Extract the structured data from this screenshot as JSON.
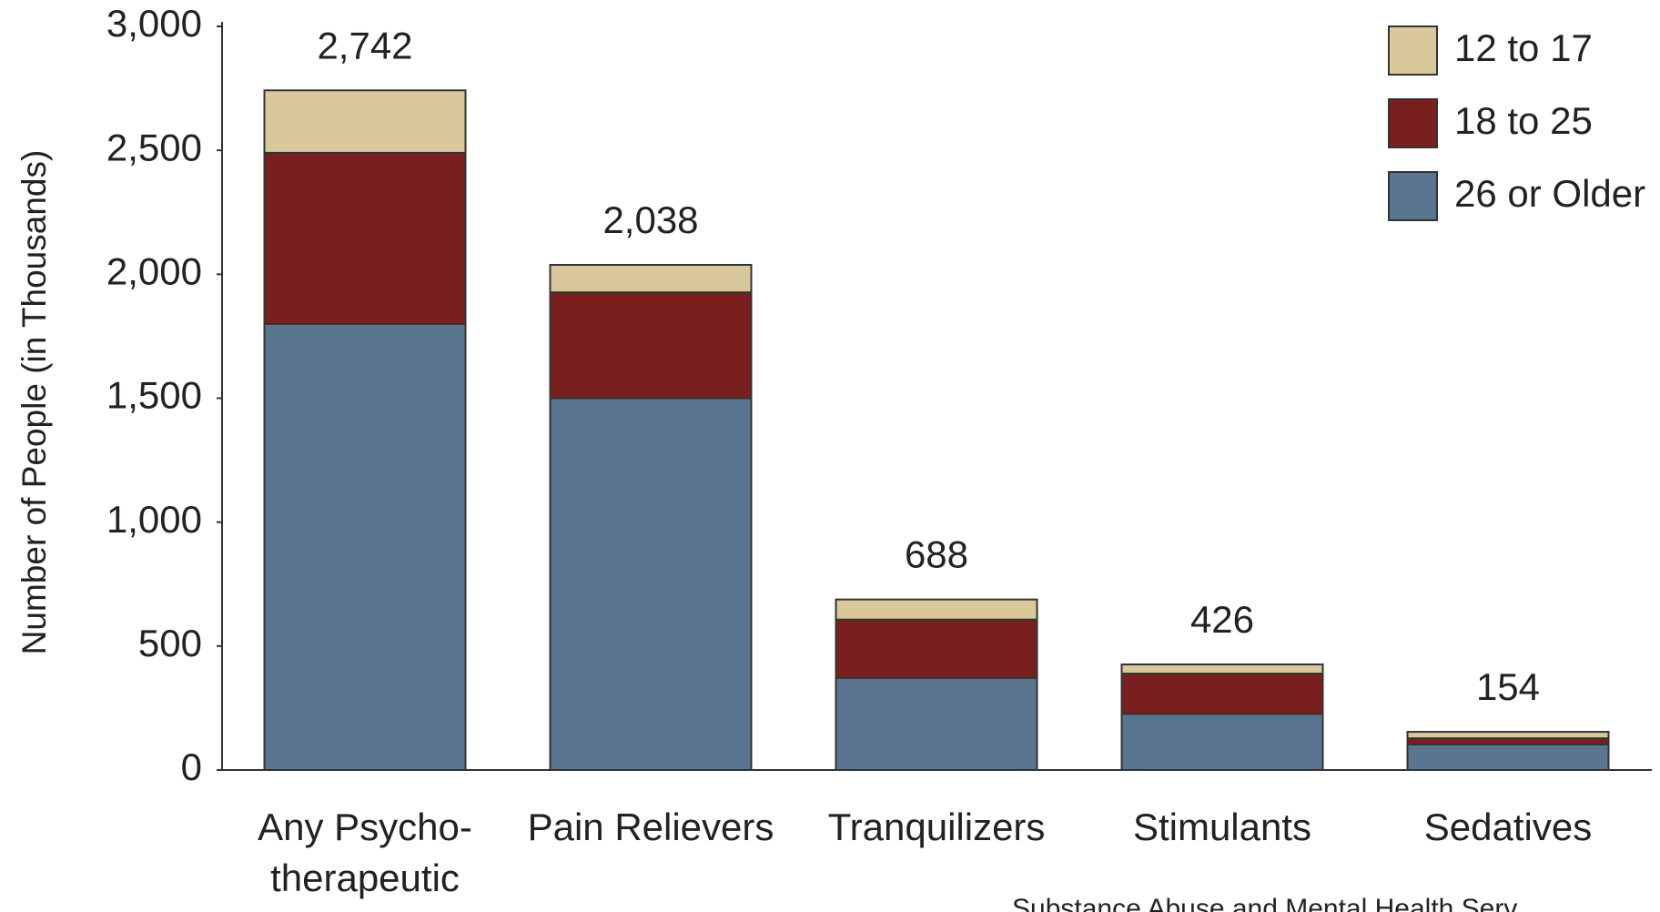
{
  "chart_data": {
    "type": "stacked_bar",
    "ylabel": "Number of People (in Thousands)",
    "categories": [
      "Any Psycho-\ntherapeutic",
      "Pain Relievers",
      "Tranquilizers",
      "Stimulants",
      "Sedatives"
    ],
    "series": [
      {
        "name": "26 or Older",
        "color": "#5a7590",
        "values": [
          1800,
          1500,
          372,
          226,
          103
        ]
      },
      {
        "name": "18 to 25",
        "color": "#79201f",
        "values": [
          690,
          427,
          235,
          163,
          25
        ]
      },
      {
        "name": "12 to 17",
        "color": "#d8c89a",
        "values": [
          252,
          111,
          81,
          37,
          26
        ]
      }
    ],
    "total_labels": [
      "2,742",
      "2,038",
      "688",
      "426",
      "154"
    ],
    "ylim": [
      0,
      3000
    ],
    "yticks": [
      0,
      500,
      {
        "value": 1000,
        "label": "1,000"
      },
      {
        "value": 1500,
        "label": "1,500"
      },
      {
        "value": 2000,
        "label": "2,000"
      },
      {
        "value": 2500,
        "label": "2,500"
      },
      {
        "value": 3000,
        "label": "3,000"
      }
    ],
    "legend": "top-right",
    "source": "Substance Abuse and Mental Health Serv"
  }
}
